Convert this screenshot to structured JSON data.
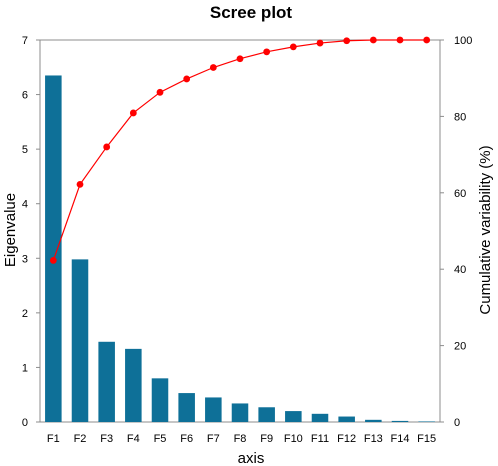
{
  "chart_data": {
    "type": "bar",
    "title": "Scree plot",
    "xlabel": "axis",
    "ylabel": "Eigenvalue",
    "y2label": "Cumulative variability (%)",
    "categories": [
      "F1",
      "F2",
      "F3",
      "F4",
      "F5",
      "F6",
      "F7",
      "F8",
      "F9",
      "F10",
      "F11",
      "F12",
      "F13",
      "F14",
      "F15"
    ],
    "series": [
      {
        "type": "bar",
        "axis": "left",
        "values": [
          6.35,
          2.98,
          1.47,
          1.34,
          0.8,
          0.53,
          0.45,
          0.34,
          0.27,
          0.2,
          0.15,
          0.1,
          0.04,
          0.02,
          0.01
        ],
        "color": "#0e7098"
      },
      {
        "type": "line",
        "axis": "right",
        "values": [
          42.3,
          62.2,
          72.0,
          80.9,
          86.3,
          89.8,
          92.8,
          95.1,
          96.9,
          98.2,
          99.2,
          99.8,
          100.0,
          100.0,
          100.0
        ],
        "color": "#ff0000"
      }
    ],
    "ylim": [
      0,
      7
    ],
    "y2lim": [
      0,
      100
    ],
    "yticks": [
      0,
      1,
      2,
      3,
      4,
      5,
      6,
      7
    ],
    "y2ticks": [
      0,
      20,
      40,
      60,
      80,
      100
    ],
    "grid": false,
    "legend": "none"
  }
}
